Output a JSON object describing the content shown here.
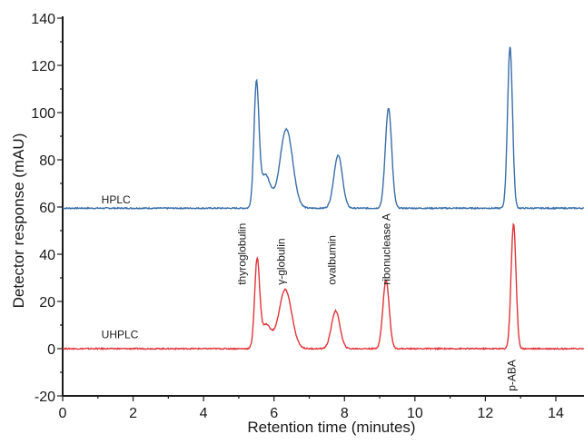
{
  "chart_data": {
    "type": "line",
    "xlabel": "Retention time (minutes)",
    "ylabel": "Detector response (mAU)",
    "xlim": [
      0,
      14.8
    ],
    "ylim": [
      -20,
      140
    ],
    "xticks": [
      0,
      2,
      4,
      6,
      8,
      10,
      12,
      14
    ],
    "yticks": [
      -20,
      0,
      20,
      40,
      60,
      80,
      100,
      120,
      140
    ],
    "series_labels": [
      "HPLC",
      "UHPLC"
    ],
    "series": [
      {
        "name": "HPLC",
        "color": "#3a6ea8",
        "baseline": 59.5,
        "peaks": [
          {
            "x": 5.5,
            "height": 110
          },
          {
            "x": 6.35,
            "height": 93
          },
          {
            "x": 7.82,
            "height": 82
          },
          {
            "x": 9.25,
            "height": 102
          },
          {
            "x": 12.7,
            "height": 128
          }
        ]
      },
      {
        "name": "UHPLC",
        "color": "#e0353a",
        "baseline": 0,
        "peaks": [
          {
            "x": 5.52,
            "height": 36
          },
          {
            "x": 6.32,
            "height": 25
          },
          {
            "x": 7.75,
            "height": 16
          },
          {
            "x": 9.18,
            "height": 29
          },
          {
            "x": 12.8,
            "height": 53
          }
        ]
      }
    ],
    "peak_labels": [
      {
        "text": "thyroglobulin",
        "x": 5.2
      },
      {
        "text": "γ-globulin",
        "x": 6.3
      },
      {
        "text": "ovalbumin",
        "x": 7.75
      },
      {
        "text": "ribonuclease A",
        "x": 9.3
      },
      {
        "text": "p-ABA",
        "x": 12.85
      }
    ]
  }
}
